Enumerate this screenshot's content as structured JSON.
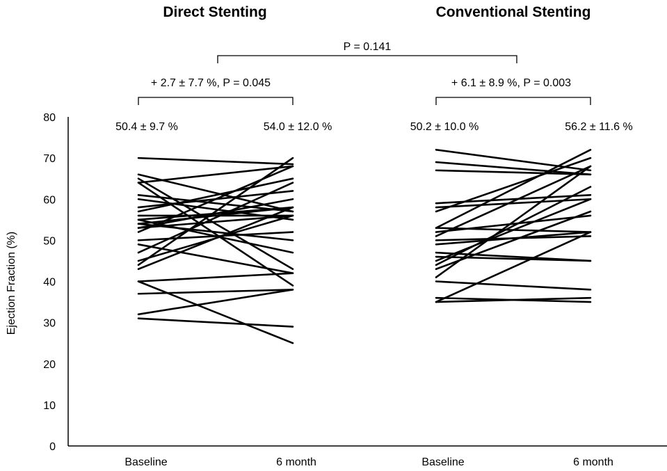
{
  "chart_data": {
    "type": "line",
    "ylabel": "Ejection Fraction (%)",
    "ylim": [
      0,
      80
    ],
    "yticks": [
      0,
      10,
      20,
      30,
      40,
      50,
      60,
      70,
      80
    ],
    "categories": [
      "Baseline",
      "6 month",
      "Baseline",
      "6 month"
    ],
    "groups": [
      {
        "title": "Direct Stenting",
        "baseline_summary": "50.4 ± 9.7 %",
        "followup_summary": "54.0 ± 12.0 %",
        "change_annotation": "+ 2.7 ± 7.7 %, P = 0.045",
        "pairs": [
          [
            70,
            68.5
          ],
          [
            66,
            57
          ],
          [
            65,
            43
          ],
          [
            64,
            68
          ],
          [
            64,
            39
          ],
          [
            61,
            57
          ],
          [
            60,
            55
          ],
          [
            58,
            62
          ],
          [
            57,
            65
          ],
          [
            56,
            56
          ],
          [
            55,
            47
          ],
          [
            55,
            58
          ],
          [
            54,
            50
          ],
          [
            54,
            58
          ],
          [
            53,
            56
          ],
          [
            53,
            60
          ],
          [
            52,
            68
          ],
          [
            50,
            52
          ],
          [
            49,
            42
          ],
          [
            47,
            64
          ],
          [
            45,
            56
          ],
          [
            44,
            70
          ],
          [
            43,
            58
          ],
          [
            40,
            25
          ],
          [
            40,
            42
          ],
          [
            37,
            38
          ],
          [
            32,
            38
          ],
          [
            31,
            29
          ]
        ]
      },
      {
        "title": "Conventional Stenting",
        "baseline_summary": "50.2 ± 10.0 %",
        "followup_summary": "56.2 ± 11.6 %",
        "change_annotation": "+ 6.1 ± 8.9 %, P = 0.003",
        "pairs": [
          [
            72,
            67
          ],
          [
            69,
            66
          ],
          [
            67,
            66
          ],
          [
            59,
            61
          ],
          [
            58,
            60
          ],
          [
            57,
            70
          ],
          [
            53,
            52
          ],
          [
            53,
            72
          ],
          [
            52,
            56
          ],
          [
            51,
            68
          ],
          [
            50,
            51
          ],
          [
            49,
            52
          ],
          [
            47,
            45
          ],
          [
            46,
            45
          ],
          [
            45,
            60
          ],
          [
            44,
            63
          ],
          [
            43,
            57
          ],
          [
            41,
            68
          ],
          [
            40,
            38
          ],
          [
            36,
            35
          ],
          [
            35,
            52
          ],
          [
            35,
            36
          ]
        ]
      }
    ],
    "between_groups_annotation": "P = 0.141"
  }
}
